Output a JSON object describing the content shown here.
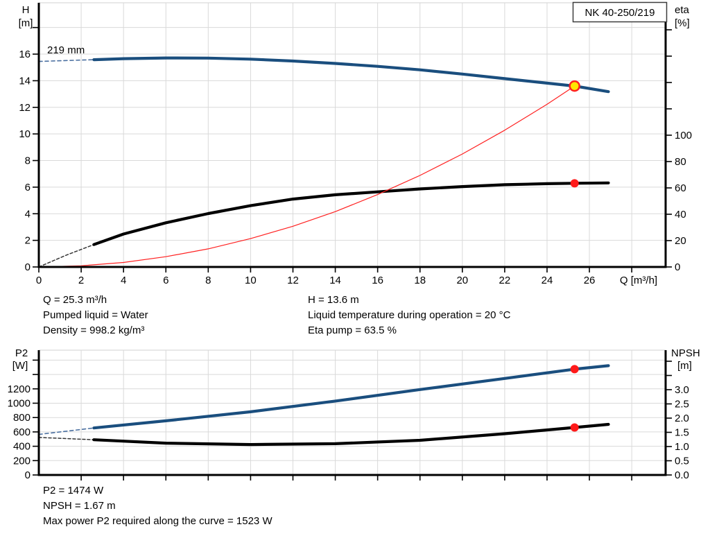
{
  "labels": {
    "h": "H",
    "h_unit": "[m]",
    "eta": "eta",
    "eta_unit": "[%]",
    "p2": "P2",
    "p2_unit": "[W]",
    "npsh": "NPSH",
    "npsh_unit": "[m]",
    "q_axis": "Q [m³/h]",
    "model": "NK 40-250/219",
    "impeller": "219 mm"
  },
  "info_top": {
    "q": "Q = 25.3 m³/h",
    "liquid": "Pumped liquid = Water",
    "density": "Density = 998.2 kg/m³",
    "h": "H = 13.6 m",
    "temp": "Liquid temperature during operation = 20 °C",
    "eta": "Eta pump = 63.5 %"
  },
  "info_bottom": {
    "p2": "P2 = 1474 W",
    "npsh": "NPSH = 1.67 m",
    "max": "Max power P2 required along the curve = 1523 W"
  },
  "colors": {
    "curve_blue": "#1a4e7e",
    "curve_black": "#000000",
    "system_red": "#ff2020",
    "marker_red": "#ff1a1a",
    "duty_yellow": "#ffe600",
    "grid": "#d9d9d9",
    "axis": "#000000"
  },
  "chart_data": [
    {
      "type": "line",
      "title": "NK 40-250/219 pump curve",
      "x": {
        "label": "Q [m³/h]",
        "min": 0,
        "max": 29.6,
        "ticks": [
          [
            0,
            "0"
          ],
          [
            2,
            "2"
          ],
          [
            4,
            "4"
          ],
          [
            6,
            "6"
          ],
          [
            8,
            "8"
          ],
          [
            10,
            "10"
          ],
          [
            12,
            "12"
          ],
          [
            14,
            "14"
          ],
          [
            16,
            "16"
          ],
          [
            18,
            "18"
          ],
          [
            20,
            "20"
          ],
          [
            22,
            "22"
          ],
          [
            24,
            "24"
          ],
          [
            26,
            "26"
          ],
          [
            28,
            null
          ]
        ]
      },
      "y_left": {
        "label": "H [m]",
        "min": 0,
        "max": 19.86,
        "ticks": [
          [
            0,
            "0"
          ],
          [
            2,
            "2"
          ],
          [
            4,
            "4"
          ],
          [
            6,
            "6"
          ],
          [
            8,
            "8"
          ],
          [
            10,
            "10"
          ],
          [
            12,
            "12"
          ],
          [
            14,
            "14"
          ],
          [
            16,
            "16"
          ],
          [
            18,
            null
          ]
        ]
      },
      "y_right": {
        "label": "eta [%]",
        "min": 0,
        "max": 200.5,
        "ticks": [
          [
            0,
            "0"
          ],
          [
            20,
            "20"
          ],
          [
            40,
            "40"
          ],
          [
            60,
            "60"
          ],
          [
            80,
            "80"
          ],
          [
            100,
            "100"
          ],
          [
            120,
            null
          ],
          [
            140,
            null
          ],
          [
            160,
            null
          ],
          [
            180,
            null
          ]
        ]
      },
      "series": [
        {
          "name": "head-curve-dashed",
          "axis": "left",
          "color": "#4a6fa0",
          "width": 1.6,
          "dash": "5,4",
          "points": [
            [
              0,
              15.45
            ],
            [
              1.3,
              15.52
            ],
            [
              2.6,
              15.58
            ]
          ]
        },
        {
          "name": "head-curve",
          "axis": "left",
          "color": "#1a4e7e",
          "width": 4.2,
          "dash": null,
          "points": [
            [
              2.6,
              15.58
            ],
            [
              4,
              15.66
            ],
            [
              6,
              15.71
            ],
            [
              8,
              15.7
            ],
            [
              10,
              15.62
            ],
            [
              12,
              15.48
            ],
            [
              14,
              15.3
            ],
            [
              16,
              15.08
            ],
            [
              18,
              14.82
            ],
            [
              20,
              14.5
            ],
            [
              22,
              14.16
            ],
            [
              24,
              13.82
            ],
            [
              25.3,
              13.6
            ],
            [
              26.9,
              13.18
            ]
          ]
        },
        {
          "name": "eta-curve-dashed",
          "axis": "right",
          "color": "#333333",
          "width": 1.5,
          "dash": "4,3",
          "points": [
            [
              0,
              0
            ],
            [
              1.3,
              9
            ],
            [
              2.6,
              17
            ]
          ]
        },
        {
          "name": "eta-curve",
          "axis": "right",
          "color": "#000000",
          "width": 4.2,
          "dash": null,
          "points": [
            [
              2.6,
              17
            ],
            [
              4,
              25
            ],
            [
              6,
              33.5
            ],
            [
              8,
              40.5
            ],
            [
              10,
              46.5
            ],
            [
              12,
              51.5
            ],
            [
              14,
              54.8
            ],
            [
              16,
              57
            ],
            [
              18,
              59.2
            ],
            [
              20,
              61
            ],
            [
              22,
              62.4
            ],
            [
              24,
              63.2
            ],
            [
              25.3,
              63.5
            ],
            [
              26.9,
              63.8
            ]
          ]
        },
        {
          "name": "system-curve",
          "axis": "left",
          "color": "#ff2020",
          "width": 1.2,
          "dash": null,
          "points": [
            [
              0,
              0
            ],
            [
              2,
              0.09
            ],
            [
              4,
              0.34
            ],
            [
              6,
              0.77
            ],
            [
              8,
              1.36
            ],
            [
              10,
              2.13
            ],
            [
              12,
              3.06
            ],
            [
              14,
              4.16
            ],
            [
              16,
              5.44
            ],
            [
              18,
              6.88
            ],
            [
              20,
              8.49
            ],
            [
              22,
              10.28
            ],
            [
              24,
              12.23
            ],
            [
              25.3,
              13.6
            ]
          ]
        }
      ],
      "markers": [
        {
          "name": "duty-point-head",
          "axis": "left",
          "x": 25.3,
          "y": 13.6,
          "r": 7,
          "fill": "#ffe600",
          "stroke": "#ff2020",
          "stroke_width": 2.5,
          "interactable": true
        },
        {
          "name": "duty-point-eta",
          "axis": "right",
          "x": 25.3,
          "y": 63.5,
          "r": 6,
          "fill": "#ff1a1a",
          "stroke": "none",
          "stroke_width": 0,
          "interactable": true
        }
      ]
    },
    {
      "type": "line",
      "title": "P2 and NPSH curves",
      "x": {
        "label": "",
        "min": 0,
        "max": 29.6,
        "ticks": [
          [
            2,
            null
          ],
          [
            4,
            null
          ],
          [
            6,
            null
          ],
          [
            8,
            null
          ],
          [
            10,
            null
          ],
          [
            12,
            null
          ],
          [
            14,
            null
          ],
          [
            16,
            null
          ],
          [
            18,
            null
          ],
          [
            20,
            null
          ],
          [
            22,
            null
          ],
          [
            24,
            null
          ],
          [
            26,
            null
          ],
          [
            28,
            null
          ]
        ]
      },
      "y_left": {
        "label": "P2 [W]",
        "min": 0,
        "max": 1739,
        "ticks": [
          [
            0,
            "0"
          ],
          [
            200,
            "200"
          ],
          [
            400,
            "400"
          ],
          [
            600,
            "600"
          ],
          [
            800,
            "800"
          ],
          [
            1000,
            "1000"
          ],
          [
            1200,
            "1200"
          ],
          [
            1400,
            null
          ],
          [
            1600,
            null
          ]
        ]
      },
      "y_right": {
        "label": "NPSH [m]",
        "min": 0,
        "max": 4.39,
        "ticks": [
          [
            0,
            "0.0"
          ],
          [
            0.5,
            "0.5"
          ],
          [
            1,
            "1.0"
          ],
          [
            1.5,
            "1.5"
          ],
          [
            2,
            "2.0"
          ],
          [
            2.5,
            "2.5"
          ],
          [
            3,
            "3.0"
          ],
          [
            3.5,
            null
          ],
          [
            4,
            null
          ]
        ]
      },
      "series": [
        {
          "name": "p2-curve-dashed",
          "axis": "left",
          "color": "#4a6fa0",
          "width": 1.6,
          "dash": "5,4",
          "points": [
            [
              0,
              565
            ],
            [
              1.3,
              610
            ],
            [
              2.6,
              655
            ]
          ]
        },
        {
          "name": "p2-curve",
          "axis": "left",
          "color": "#1a4e7e",
          "width": 4.2,
          "dash": null,
          "points": [
            [
              2.6,
              655
            ],
            [
              6,
              755
            ],
            [
              10,
              880
            ],
            [
              14,
              1030
            ],
            [
              18,
              1190
            ],
            [
              22,
              1345
            ],
            [
              25.3,
              1474
            ],
            [
              26.9,
              1523
            ]
          ]
        },
        {
          "name": "npsh-curve-dashed",
          "axis": "right",
          "color": "#333333",
          "width": 1.5,
          "dash": "4,3",
          "points": [
            [
              0,
              1.32
            ],
            [
              1.3,
              1.28
            ],
            [
              2.6,
              1.24
            ]
          ]
        },
        {
          "name": "npsh-curve",
          "axis": "right",
          "color": "#000000",
          "width": 4.2,
          "dash": null,
          "points": [
            [
              2.6,
              1.24
            ],
            [
              6,
              1.12
            ],
            [
              10,
              1.07
            ],
            [
              14,
              1.1
            ],
            [
              18,
              1.22
            ],
            [
              22,
              1.45
            ],
            [
              25.3,
              1.67
            ],
            [
              26.9,
              1.78
            ]
          ]
        }
      ],
      "markers": [
        {
          "name": "duty-point-p2",
          "axis": "left",
          "x": 25.3,
          "y": 1474,
          "r": 6,
          "fill": "#ff1a1a",
          "stroke": "none",
          "stroke_width": 0,
          "interactable": true
        },
        {
          "name": "duty-point-npsh",
          "axis": "right",
          "x": 25.3,
          "y": 1.67,
          "r": 6,
          "fill": "#ff1a1a",
          "stroke": "none",
          "stroke_width": 0,
          "interactable": true
        }
      ]
    }
  ]
}
